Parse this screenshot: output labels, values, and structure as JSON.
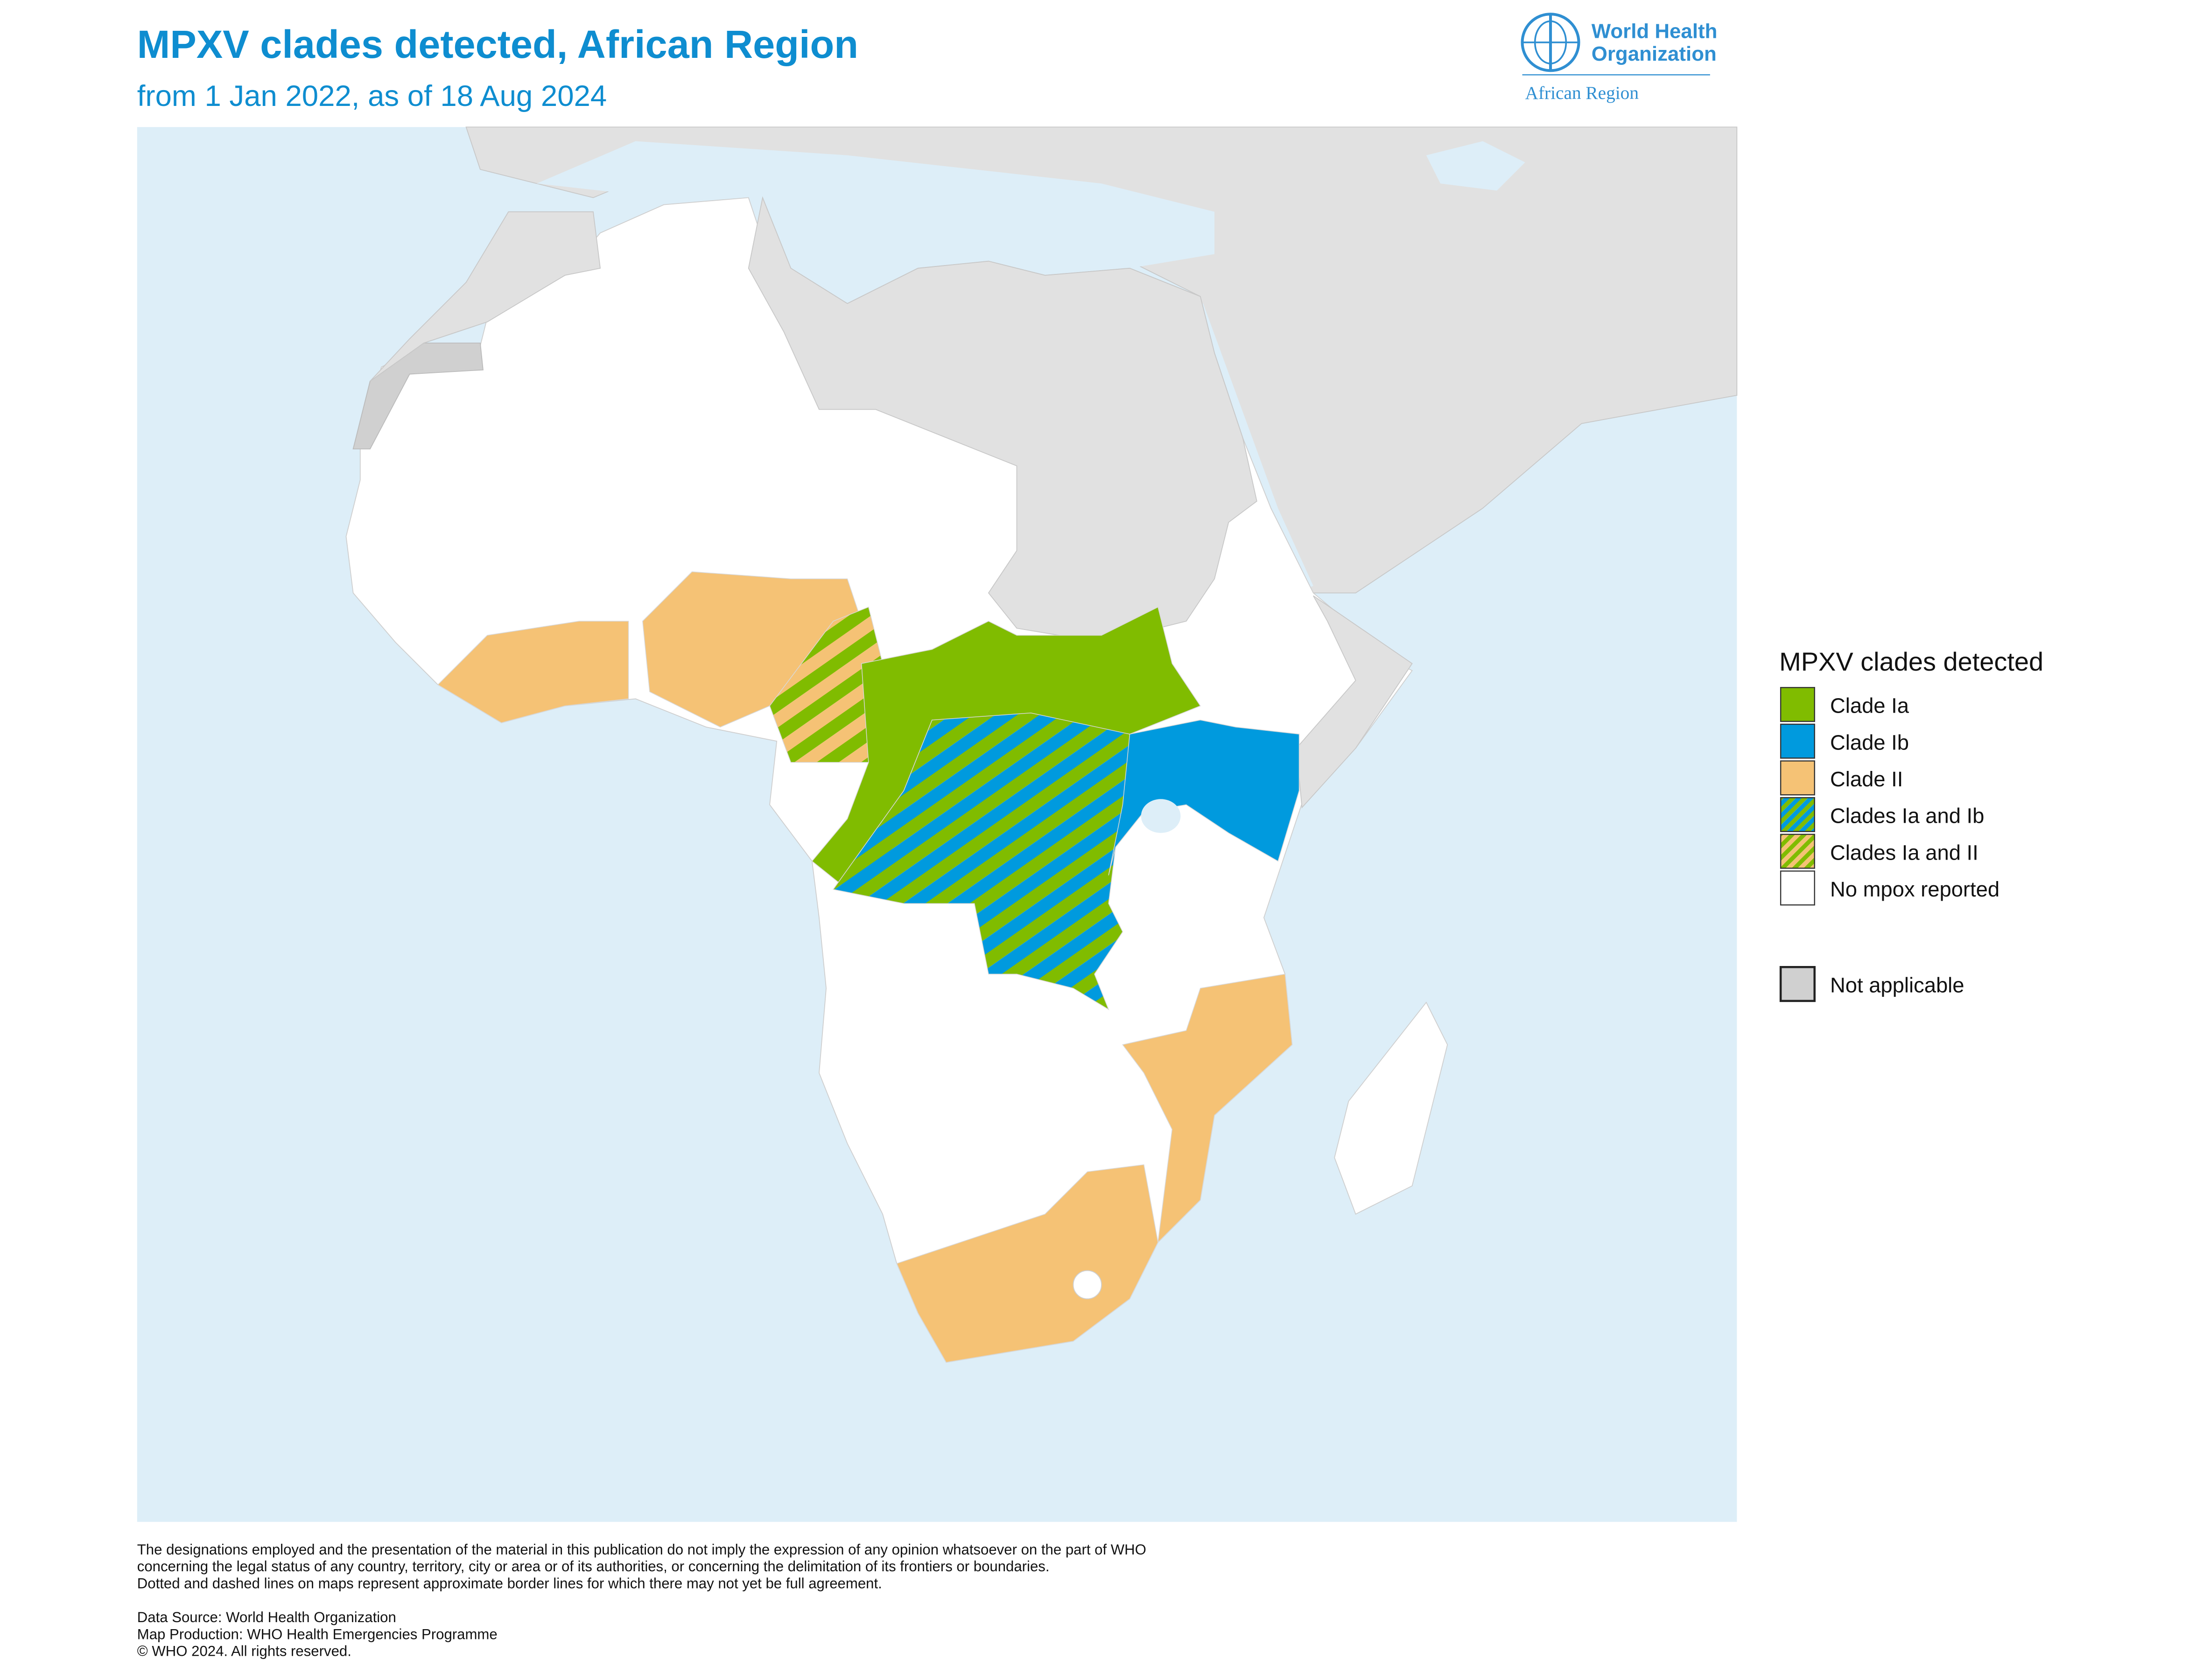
{
  "header": {
    "title": "MPXV clades detected, African Region",
    "subtitle": "from 1 Jan 2022, as of 18 Aug 2024"
  },
  "logo": {
    "name_line1": "World Health",
    "name_line2": "Organization",
    "region": "African Region"
  },
  "legend": {
    "title": "MPXV clades detected",
    "items": [
      {
        "label": "Clade Ia",
        "colors": [
          "#80bc00"
        ]
      },
      {
        "label": "Clade Ib",
        "colors": [
          "#009ade"
        ]
      },
      {
        "label": "Clade II",
        "colors": [
          "#f5c275"
        ]
      },
      {
        "label": "Clades Ia and Ib",
        "colors": [
          "#80bc00",
          "#009ade"
        ]
      },
      {
        "label": "Clades Ia and II",
        "colors": [
          "#80bc00",
          "#f5c275"
        ]
      },
      {
        "label": "No mpox reported",
        "colors": [
          "#ffffff"
        ]
      }
    ],
    "other": {
      "label": "Not applicable",
      "colors": [
        "#d0d0d0"
      ]
    }
  },
  "footer": {
    "disclaimer": [
      "The designations employed and the presentation of the material in this publication do not imply the expression of any opinion whatsoever on the part of WHO",
      "concerning the legal status of any country, territory, city or area or of its authorities, or concerning the delimitation of its frontiers or boundaries.",
      "Dotted and dashed lines on maps represent approximate border lines for which there may not yet be full agreement."
    ],
    "credits": [
      "Data Source: World Health Organization",
      "Map Production: WHO Health Emergencies Programme",
      "© WHO 2024. All rights reserved."
    ]
  }
}
